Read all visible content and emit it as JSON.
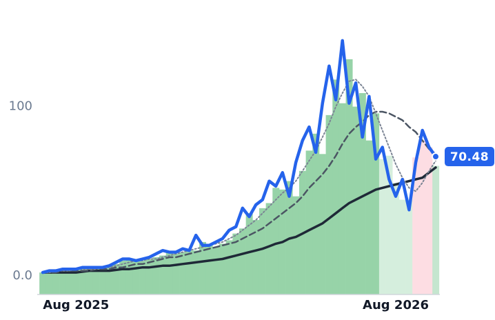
{
  "chart_data": {
    "type": "line",
    "categories": [
      null,
      null,
      null,
      null,
      null,
      "Aug 2025",
      null,
      null,
      null,
      null,
      null,
      null,
      null,
      null,
      null,
      null,
      null,
      null,
      null,
      null,
      null,
      null,
      null,
      null,
      null,
      null,
      null,
      null,
      null,
      null,
      null,
      null,
      null,
      null,
      null,
      null,
      null,
      null,
      null,
      null,
      null,
      null,
      null,
      null,
      null,
      null,
      null,
      null,
      null,
      null,
      null,
      null,
      null,
      "Aug 2026",
      null,
      null,
      null,
      null,
      null,
      null
    ],
    "ylim": [
      -11,
      163
    ],
    "yticks": [
      {
        "value": 0,
        "label": "0.0"
      },
      100
    ],
    "bars": {
      "values": [
        2,
        3,
        3,
        3,
        4,
        4,
        4,
        5,
        5,
        5,
        6,
        7,
        9,
        10,
        10,
        9,
        10,
        11,
        12,
        14,
        13,
        14,
        15,
        15,
        20,
        18,
        17,
        19,
        21,
        25,
        28,
        37,
        33,
        40,
        43,
        52,
        51,
        56,
        47,
        62,
        74,
        84,
        72,
        95,
        116,
        102,
        128,
        100,
        108,
        80,
        96,
        69,
        71,
        55,
        45,
        45,
        70,
        80,
        76,
        65
      ],
      "colors": [
        "#97d3a8",
        "#97d3a8",
        "#97d3a8",
        "#97d3a8",
        "#97d3a8",
        "#97d3a8",
        "#97d3a8",
        "#97d3a8",
        "#97d3a8",
        "#97d3a8",
        "#97d3a8",
        "#97d3a8",
        "#97d3a8",
        "#97d3a8",
        "#97d3a8",
        "#97d3a8",
        "#97d3a8",
        "#97d3a8",
        "#97d3a8",
        "#97d3a8",
        "#97d3a8",
        "#97d3a8",
        "#97d3a8",
        "#97d3a8",
        "#97d3a8",
        "#97d3a8",
        "#97d3a8",
        "#97d3a8",
        "#97d3a8",
        "#97d3a8",
        "#97d3a8",
        "#97d3a8",
        "#97d3a8",
        "#97d3a8",
        "#97d3a8",
        "#97d3a8",
        "#97d3a8",
        "#97d3a8",
        "#97d3a8",
        "#97d3a8",
        "#97d3a8",
        "#97d3a8",
        "#97d3a8",
        "#97d3a8",
        "#97d3a8",
        "#97d3a8",
        "#97d3a8",
        "#97d3a8",
        "#97d3a8",
        "#97d3a8",
        "#97d3a8",
        "#d5eedd",
        "#d5eedd",
        "#d5eedd",
        "#d5eedd",
        "#d5eedd",
        "#fddde3",
        "#fddde3",
        "#fddde3",
        "#c5e6cf"
      ]
    },
    "series": [
      {
        "color": "#2563eb",
        "style": "solid",
        "width": 4.5,
        "values": [
          2,
          3,
          3,
          4,
          4,
          4,
          5,
          5,
          5,
          5,
          6,
          8,
          10,
          10,
          9,
          10,
          11,
          13,
          15,
          14,
          14,
          16,
          15,
          24,
          18,
          18,
          20,
          22,
          27,
          29,
          40,
          35,
          42,
          45,
          56,
          53,
          61,
          47,
          67,
          80,
          88,
          73,
          102,
          124,
          104,
          139,
          102,
          114,
          82,
          106,
          69,
          76,
          57,
          47,
          57,
          39,
          67,
          86,
          76,
          70.48
        ]
      },
      {
        "color": "#7b8494",
        "style": "dotted",
        "width": 2,
        "values": [
          2,
          2,
          3,
          3,
          3,
          4,
          4,
          4,
          4,
          5,
          5,
          6,
          7,
          8,
          9,
          9,
          10,
          10,
          11,
          12,
          13,
          14,
          15,
          16,
          17,
          18,
          19,
          20,
          22,
          24,
          27,
          30,
          33,
          37,
          41,
          45,
          49,
          52,
          56,
          62,
          68,
          74,
          82,
          90,
          100,
          108,
          115,
          116,
          112,
          106,
          96,
          86,
          76,
          66,
          58,
          52,
          50,
          55,
          62,
          68
        ]
      },
      {
        "color": "#4b5563",
        "style": "dashed",
        "width": 2.5,
        "values": [
          2,
          2,
          2,
          3,
          3,
          3,
          3,
          3,
          4,
          4,
          4,
          5,
          5,
          6,
          7,
          7,
          8,
          9,
          10,
          11,
          11,
          12,
          13,
          14,
          15,
          16,
          17,
          18,
          19,
          20,
          22,
          24,
          26,
          28,
          31,
          34,
          37,
          40,
          43,
          47,
          52,
          56,
          60,
          65,
          71,
          78,
          84,
          88,
          91,
          95,
          97,
          97,
          96,
          94,
          92,
          88,
          85,
          80,
          75,
          72
        ]
      },
      {
        "color": "#1f2937",
        "style": "solid",
        "width": 3.5,
        "values": [
          2,
          2,
          2,
          2,
          2,
          2,
          2.5,
          3,
          3,
          3,
          3,
          3.5,
          4,
          4,
          4.5,
          5,
          5,
          5.5,
          6,
          6,
          6.5,
          7,
          7.5,
          8,
          8.5,
          9,
          9.5,
          10,
          11,
          12,
          13,
          14,
          15,
          16,
          17.5,
          19,
          20,
          22,
          23,
          25,
          27,
          29,
          31,
          34,
          37,
          40,
          43,
          45,
          47,
          49,
          51,
          52,
          53,
          54,
          55,
          56,
          57,
          58,
          61,
          64
        ]
      }
    ]
  }
}
